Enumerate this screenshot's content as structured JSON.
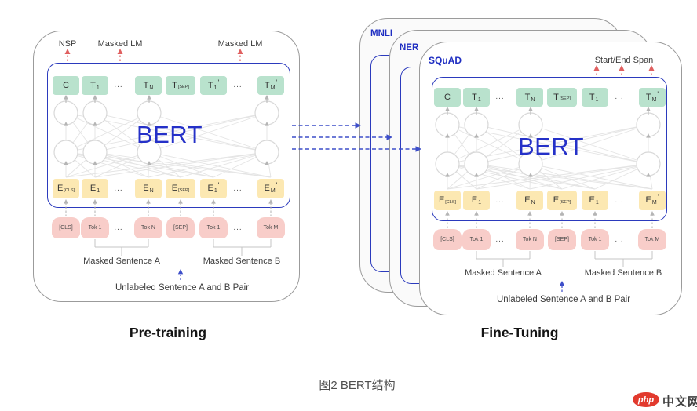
{
  "diagram": {
    "pretraining": {
      "caption": "Pre-training",
      "top_labels": [
        "NSP",
        "Masked LM",
        "Masked LM"
      ],
      "bert_label": "BERT",
      "rows": {
        "outputs": [
          {
            "t": "C"
          },
          {
            "t": "T",
            "s": "1"
          },
          {
            "ellipsis": "..."
          },
          {
            "t": "T",
            "s": "N"
          },
          {
            "t": "T",
            "s": "[SEP]"
          },
          {
            "t": "T",
            "s": "1",
            "prime": true
          },
          {
            "ellipsis": "..."
          },
          {
            "t": "T",
            "s": "M",
            "prime": true
          }
        ],
        "embeddings": [
          {
            "t": "E",
            "s": "[CLS]"
          },
          {
            "t": "E",
            "s": "1"
          },
          {
            "ellipsis": "..."
          },
          {
            "t": "E",
            "s": "N"
          },
          {
            "t": "E",
            "s": "[SEP]"
          },
          {
            "t": "E",
            "s": "1",
            "prime": true
          },
          {
            "ellipsis": "..."
          },
          {
            "t": "E",
            "s": "M",
            "prime": true
          }
        ],
        "inputs": [
          {
            "t": "[CLS]"
          },
          {
            "t": "Tok 1"
          },
          {
            "ellipsis": "..."
          },
          {
            "t": "Tok N"
          },
          {
            "t": "[SEP]"
          },
          {
            "t": "Tok 1"
          },
          {
            "ellipsis": "..."
          },
          {
            "t": "Tok M"
          }
        ]
      },
      "sentence_a_label": "Masked Sentence A",
      "sentence_b_label": "Masked Sentence B",
      "pair_label": "Unlabeled Sentence A and B Pair"
    },
    "finetuning": {
      "caption": "Fine-Tuning",
      "card_labels": [
        "MNLI",
        "NER",
        "SQuAD"
      ],
      "top_label": "Start/End Span",
      "bert_label": "BERT",
      "rows": {
        "outputs": [
          {
            "t": "C"
          },
          {
            "t": "T",
            "s": "1"
          },
          {
            "ellipsis": "..."
          },
          {
            "t": "T",
            "s": "N"
          },
          {
            "t": "T",
            "s": "[SEP]"
          },
          {
            "t": "T",
            "s": "1",
            "prime": true
          },
          {
            "ellipsis": "..."
          },
          {
            "t": "T",
            "s": "M",
            "prime": true
          }
        ],
        "embeddings": [
          {
            "t": "E",
            "s": "[CLS]"
          },
          {
            "t": "E",
            "s": "1"
          },
          {
            "ellipsis": "..."
          },
          {
            "t": "E",
            "s": "N"
          },
          {
            "t": "E",
            "s": "[SEP]"
          },
          {
            "t": "E",
            "s": "1",
            "prime": true
          },
          {
            "ellipsis": "..."
          },
          {
            "t": "E",
            "s": "M",
            "prime": true
          }
        ],
        "inputs": [
          {
            "t": "[CLS]"
          },
          {
            "t": "Tok 1"
          },
          {
            "ellipsis": "..."
          },
          {
            "t": "Tok N"
          },
          {
            "t": "[SEP]"
          },
          {
            "t": "Tok 1"
          },
          {
            "ellipsis": "..."
          },
          {
            "t": "Tok M"
          }
        ]
      },
      "sentence_a_label": "Masked Sentence A",
      "sentence_b_label": "Masked Sentence B",
      "pair_label": "Unlabeled Sentence A and B Pair"
    },
    "figure_caption": "图2 BERT结构",
    "watermark": {
      "badge": "php",
      "text": "中文网"
    },
    "colors": {
      "token_output": "#b9e2cd",
      "token_embedding": "#fce8b2",
      "token_input": "#f8cdc9",
      "bert_blue": "#2531c8",
      "box_border_blue": "#2b3abd",
      "card_border": "#9b9b9b",
      "arrow_red": "#e06060",
      "arrow_blue": "#3d4ec9",
      "label_blue": "#1f2ec2",
      "wire_gray": "#e4e4e4",
      "arrow_gray": "#b5b5b5"
    }
  }
}
